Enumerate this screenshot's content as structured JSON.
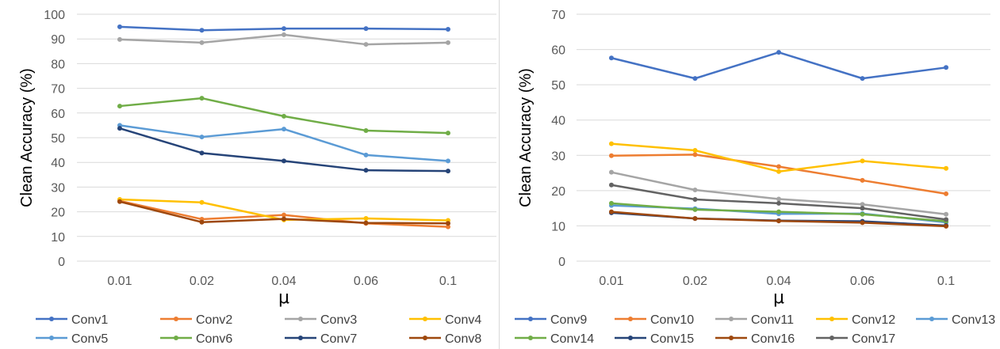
{
  "chart_data": [
    {
      "type": "line",
      "title": "",
      "xlabel": "μ",
      "ylabel": "Clean Accuracy (%)",
      "ylim": [
        0,
        100
      ],
      "ytick_step": 10,
      "yticks": [
        "0",
        "10",
        "20",
        "30",
        "40",
        "50",
        "60",
        "70",
        "80",
        "90",
        "100"
      ],
      "categories": [
        "0.01",
        "0.02",
        "0.04",
        "0.06",
        "0.1"
      ],
      "grid": true,
      "legend_position": "bottom",
      "series": [
        {
          "name": "Conv1",
          "color": "#4472C4",
          "values": [
            94.9,
            93.5,
            94.2,
            94.2,
            93.9
          ]
        },
        {
          "name": "Conv2",
          "color": "#ED7D31",
          "values": [
            24.4,
            17.0,
            18.7,
            15.3,
            13.9
          ]
        },
        {
          "name": "Conv3",
          "color": "#A5A5A5",
          "values": [
            89.8,
            88.5,
            91.7,
            87.8,
            88.5
          ]
        },
        {
          "name": "Conv4",
          "color": "#FFC000",
          "values": [
            25.0,
            23.8,
            16.7,
            17.3,
            16.5
          ]
        },
        {
          "name": "Conv5",
          "color": "#5B9BD5",
          "values": [
            55.0,
            50.3,
            53.5,
            43.0,
            40.6
          ]
        },
        {
          "name": "Conv6",
          "color": "#70AD47",
          "values": [
            62.8,
            66.0,
            58.7,
            52.9,
            51.9
          ]
        },
        {
          "name": "Conv7",
          "color": "#264478",
          "values": [
            53.8,
            43.8,
            40.6,
            36.8,
            36.5
          ]
        },
        {
          "name": "Conv8",
          "color": "#9E480E",
          "values": [
            24.1,
            15.8,
            17.1,
            15.5,
            15.3
          ]
        }
      ]
    },
    {
      "type": "line",
      "title": "",
      "xlabel": "μ",
      "ylabel": "Clean Accuracy (%)",
      "ylim": [
        0,
        70
      ],
      "ytick_step": 10,
      "yticks": [
        "0",
        "10",
        "20",
        "30",
        "40",
        "50",
        "60",
        "70"
      ],
      "categories": [
        "0.01",
        "0.02",
        "0.04",
        "0.06",
        "0.1"
      ],
      "grid": true,
      "legend_position": "bottom",
      "series": [
        {
          "name": "Conv9",
          "color": "#4472C4",
          "values": [
            57.6,
            51.8,
            59.2,
            51.8,
            54.9
          ]
        },
        {
          "name": "Conv10",
          "color": "#ED7D31",
          "values": [
            29.9,
            30.2,
            26.8,
            22.9,
            19.1
          ]
        },
        {
          "name": "Conv11",
          "color": "#A5A5A5",
          "values": [
            25.2,
            20.2,
            17.6,
            16.1,
            13.3
          ]
        },
        {
          "name": "Conv12",
          "color": "#FFC000",
          "values": [
            33.3,
            31.4,
            25.4,
            28.4,
            26.3
          ]
        },
        {
          "name": "Conv13",
          "color": "#5B9BD5",
          "values": [
            15.8,
            14.9,
            13.4,
            13.5,
            11.0
          ]
        },
        {
          "name": "Conv14",
          "color": "#70AD47",
          "values": [
            16.4,
            14.6,
            14.0,
            13.3,
            11.3
          ]
        },
        {
          "name": "Conv15",
          "color": "#264478",
          "values": [
            13.7,
            12.1,
            11.5,
            11.3,
            10.1
          ]
        },
        {
          "name": "Conv16",
          "color": "#9E480E",
          "values": [
            14.0,
            12.1,
            11.4,
            10.9,
            9.9
          ]
        },
        {
          "name": "Conv17",
          "color": "#636363",
          "values": [
            21.6,
            17.5,
            16.4,
            15.0,
            11.8
          ]
        }
      ]
    }
  ]
}
